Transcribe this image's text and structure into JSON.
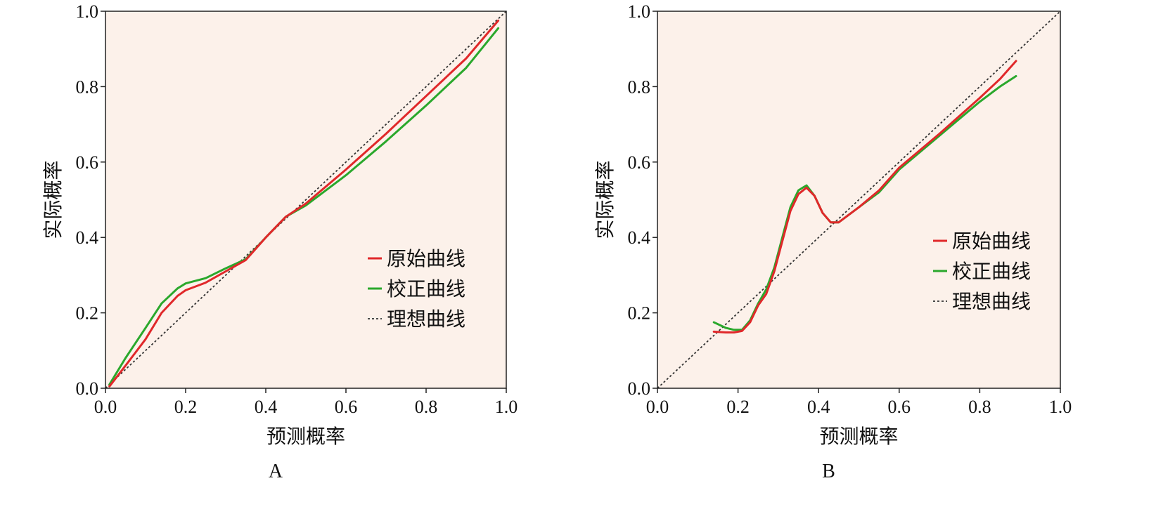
{
  "chart_data": [
    {
      "type": "line",
      "panel_label": "A",
      "xlabel": "预测概率",
      "ylabel": "实际概率",
      "xlim": [
        0,
        1
      ],
      "ylim": [
        0,
        1
      ],
      "x_ticks": [
        "0.0",
        "0.2",
        "0.4",
        "0.6",
        "0.8",
        "1.0"
      ],
      "y_ticks": [
        "0.0",
        "0.2",
        "0.4",
        "0.6",
        "0.8",
        "1.0"
      ],
      "grid": false,
      "legend_position": "lower-right",
      "background_color": "#fcf1ea",
      "series": [
        {
          "name": "原始曲线",
          "color": "#e0282a",
          "style": "solid",
          "x": [
            0.01,
            0.05,
            0.1,
            0.14,
            0.18,
            0.2,
            0.25,
            0.3,
            0.35,
            0.4,
            0.45,
            0.5,
            0.6,
            0.7,
            0.8,
            0.9,
            0.98
          ],
          "y": [
            0.005,
            0.06,
            0.13,
            0.2,
            0.245,
            0.26,
            0.28,
            0.31,
            0.34,
            0.4,
            0.455,
            0.49,
            0.58,
            0.675,
            0.775,
            0.875,
            0.975
          ]
        },
        {
          "name": "校正曲线",
          "color": "#2aa82c",
          "style": "solid",
          "x": [
            0.01,
            0.05,
            0.1,
            0.14,
            0.18,
            0.2,
            0.25,
            0.3,
            0.35,
            0.4,
            0.45,
            0.5,
            0.6,
            0.7,
            0.8,
            0.9,
            0.98
          ],
          "y": [
            0.01,
            0.08,
            0.16,
            0.225,
            0.265,
            0.278,
            0.292,
            0.318,
            0.342,
            0.4,
            0.455,
            0.485,
            0.565,
            0.655,
            0.75,
            0.85,
            0.955
          ]
        },
        {
          "name": "理想曲线",
          "color": "#333333",
          "style": "dotted",
          "x": [
            0,
            1
          ],
          "y": [
            0,
            1
          ]
        }
      ]
    },
    {
      "type": "line",
      "panel_label": "B",
      "xlabel": "预测概率",
      "ylabel": "实际概率",
      "xlim": [
        0,
        1
      ],
      "ylim": [
        0,
        1
      ],
      "x_ticks": [
        "0.0",
        "0.2",
        "0.4",
        "0.6",
        "0.8",
        "1.0"
      ],
      "y_ticks": [
        "0.0",
        "0.2",
        "0.4",
        "0.6",
        "0.8",
        "1.0"
      ],
      "grid": false,
      "legend_position": "middle-right",
      "background_color": "#fcf1ea",
      "series": [
        {
          "name": "原始曲线",
          "color": "#e0282a",
          "style": "solid",
          "x": [
            0.14,
            0.17,
            0.19,
            0.21,
            0.23,
            0.25,
            0.27,
            0.29,
            0.31,
            0.33,
            0.35,
            0.37,
            0.39,
            0.41,
            0.43,
            0.45,
            0.5,
            0.55,
            0.6,
            0.7,
            0.8,
            0.85,
            0.89
          ],
          "y": [
            0.15,
            0.148,
            0.148,
            0.152,
            0.175,
            0.22,
            0.25,
            0.31,
            0.39,
            0.47,
            0.515,
            0.532,
            0.51,
            0.465,
            0.44,
            0.44,
            0.48,
            0.525,
            0.585,
            0.675,
            0.77,
            0.82,
            0.868
          ]
        },
        {
          "name": "校正曲线",
          "color": "#2aa82c",
          "style": "solid",
          "x": [
            0.14,
            0.17,
            0.19,
            0.21,
            0.23,
            0.25,
            0.27,
            0.29,
            0.31,
            0.33,
            0.35,
            0.37,
            0.39,
            0.41,
            0.43,
            0.45,
            0.5,
            0.55,
            0.6,
            0.7,
            0.8,
            0.85,
            0.89
          ],
          "y": [
            0.175,
            0.16,
            0.155,
            0.155,
            0.18,
            0.225,
            0.262,
            0.32,
            0.4,
            0.48,
            0.525,
            0.538,
            0.51,
            0.465,
            0.44,
            0.44,
            0.48,
            0.52,
            0.58,
            0.67,
            0.76,
            0.8,
            0.828
          ]
        },
        {
          "name": "理想曲线",
          "color": "#333333",
          "style": "dotted",
          "x": [
            0,
            1
          ],
          "y": [
            0,
            1
          ]
        }
      ]
    }
  ]
}
